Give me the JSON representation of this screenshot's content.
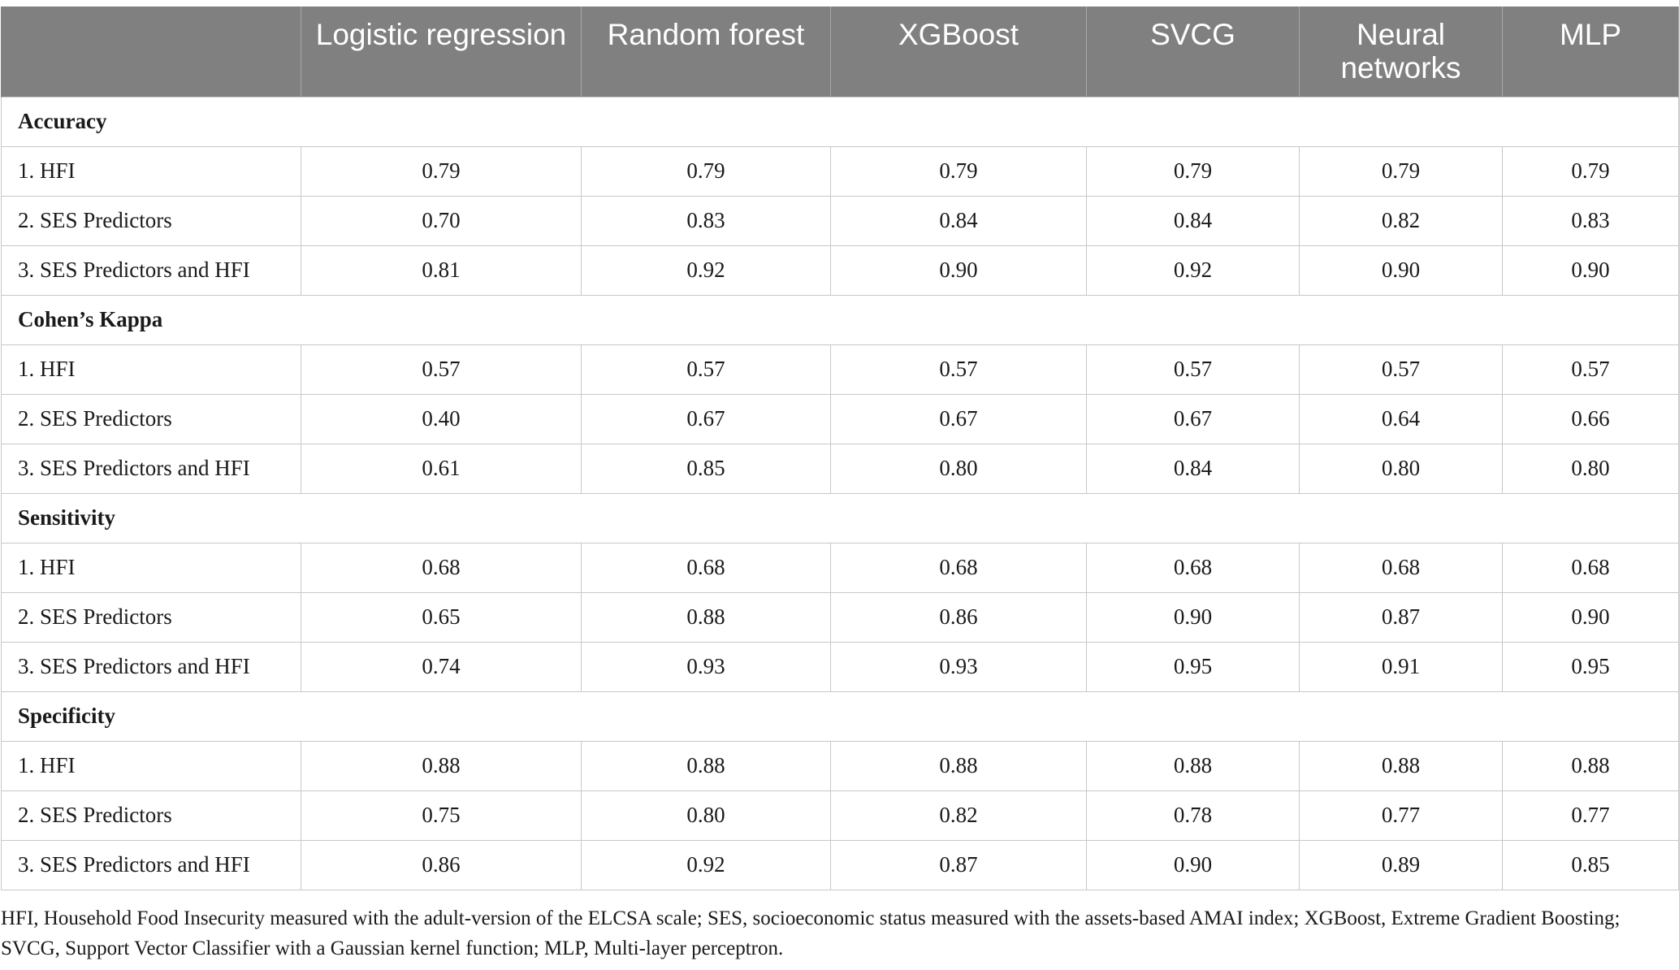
{
  "table": {
    "columns": [
      "",
      "Logistic regression",
      "Random forest",
      "XGBoost",
      "SVCG",
      "Neural networks",
      "MLP"
    ],
    "sections": [
      {
        "title": "Accuracy",
        "rows": [
          {
            "label": "1. HFI",
            "values": [
              "0.79",
              "0.79",
              "0.79",
              "0.79",
              "0.79",
              "0.79"
            ]
          },
          {
            "label": "2. SES Predictors",
            "values": [
              "0.70",
              "0.83",
              "0.84",
              "0.84",
              "0.82",
              "0.83"
            ]
          },
          {
            "label": "3. SES Predictors and HFI",
            "values": [
              "0.81",
              "0.92",
              "0.90",
              "0.92",
              "0.90",
              "0.90"
            ]
          }
        ]
      },
      {
        "title": "Cohen’s Kappa",
        "rows": [
          {
            "label": "1. HFI",
            "values": [
              "0.57",
              "0.57",
              "0.57",
              "0.57",
              "0.57",
              "0.57"
            ]
          },
          {
            "label": "2. SES Predictors",
            "values": [
              "0.40",
              "0.67",
              "0.67",
              "0.67",
              "0.64",
              "0.66"
            ]
          },
          {
            "label": "3. SES Predictors and HFI",
            "values": [
              "0.61",
              "0.85",
              "0.80",
              "0.84",
              "0.80",
              "0.80"
            ]
          }
        ]
      },
      {
        "title": "Sensitivity",
        "rows": [
          {
            "label": "1. HFI",
            "values": [
              "0.68",
              "0.68",
              "0.68",
              "0.68",
              "0.68",
              "0.68"
            ]
          },
          {
            "label": "2. SES Predictors",
            "values": [
              "0.65",
              "0.88",
              "0.86",
              "0.90",
              "0.87",
              "0.90"
            ]
          },
          {
            "label": "3. SES Predictors and HFI",
            "values": [
              "0.74",
              "0.93",
              "0.93",
              "0.95",
              "0.91",
              "0.95"
            ]
          }
        ]
      },
      {
        "title": "Specificity",
        "rows": [
          {
            "label": "1. HFI",
            "values": [
              "0.88",
              "0.88",
              "0.88",
              "0.88",
              "0.88",
              "0.88"
            ]
          },
          {
            "label": "2. SES Predictors",
            "values": [
              "0.75",
              "0.80",
              "0.82",
              "0.78",
              "0.77",
              "0.77"
            ]
          },
          {
            "label": "3. SES Predictors and HFI",
            "values": [
              "0.86",
              "0.92",
              "0.87",
              "0.90",
              "0.89",
              "0.85"
            ]
          }
        ]
      }
    ]
  },
  "footnote": "HFI, Household Food Insecurity measured with the adult-version of the ELCSA scale; SES, socioeconomic status measured with the assets-based AMAI index; XGBoost, Extreme Gradient Boosting; SVCG, Support Vector Classifier with a Gaussian kernel function; MLP, Multi-layer perceptron.",
  "colors": {
    "header_background": "#808080",
    "header_text": "#ffffff",
    "grid_lines": "#c8c8c8"
  }
}
